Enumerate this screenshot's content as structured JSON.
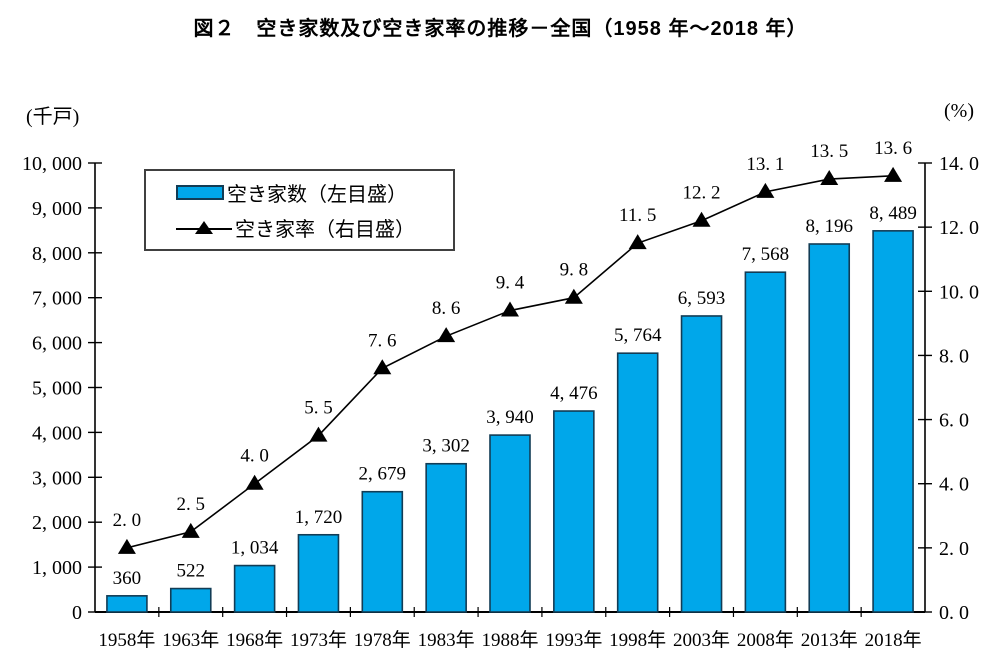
{
  "chart_data": {
    "type": "combo",
    "subtypes": [
      "bar",
      "line"
    ],
    "title": "図２　空き家数及び空き家率の推移－全国（1958 年～2018 年）",
    "categories": [
      "1958年",
      "1963年",
      "1968年",
      "1973年",
      "1978年",
      "1983年",
      "1988年",
      "1993年",
      "1998年",
      "2003年",
      "2008年",
      "2013年",
      "2018年"
    ],
    "series": [
      {
        "name": "空き家数（左目盛）",
        "type": "bar",
        "axis": "left",
        "color": "#00a7ea",
        "border_color": "#123c55",
        "values": [
          360,
          522,
          1034,
          1720,
          2679,
          3302,
          3940,
          4476,
          5764,
          6593,
          7568,
          8196,
          8489
        ],
        "labels": [
          "360",
          "522",
          "1, 034",
          "1, 720",
          "2, 679",
          "3, 302",
          "3, 940",
          "4, 476",
          "5, 764",
          "6, 593",
          "7, 568",
          "8, 196",
          "8, 489"
        ]
      },
      {
        "name": "空き家率（右目盛）",
        "type": "line",
        "axis": "right",
        "color": "#000000",
        "marker": "triangle",
        "values": [
          2.0,
          2.5,
          4.0,
          5.5,
          7.6,
          8.6,
          9.4,
          9.8,
          11.5,
          12.2,
          13.1,
          13.5,
          13.6
        ],
        "labels": [
          "2. 0",
          "2. 5",
          "4. 0",
          "5. 5",
          "7. 6",
          "8. 6",
          "9. 4",
          "9. 8",
          "11. 5",
          "12. 2",
          "13. 1",
          "13. 5",
          "13. 6"
        ]
      }
    ],
    "left_axis": {
      "unit": "(千戸)",
      "min": 0,
      "max": 10000,
      "step": 1000,
      "tick_labels": [
        "0",
        "1, 000",
        "2, 000",
        "3, 000",
        "4, 000",
        "5, 000",
        "6, 000",
        "7, 000",
        "8, 000",
        "9, 000",
        "10, 000"
      ]
    },
    "right_axis": {
      "unit": "(%)",
      "min": 0,
      "max": 14,
      "step": 2,
      "tick_labels": [
        "0. 0",
        "2. 0",
        "4. 0",
        "6. 0",
        "8. 0",
        "10. 0",
        "12. 0",
        "14. 0"
      ]
    },
    "grid": false,
    "legend_position": "top-left-inside"
  }
}
